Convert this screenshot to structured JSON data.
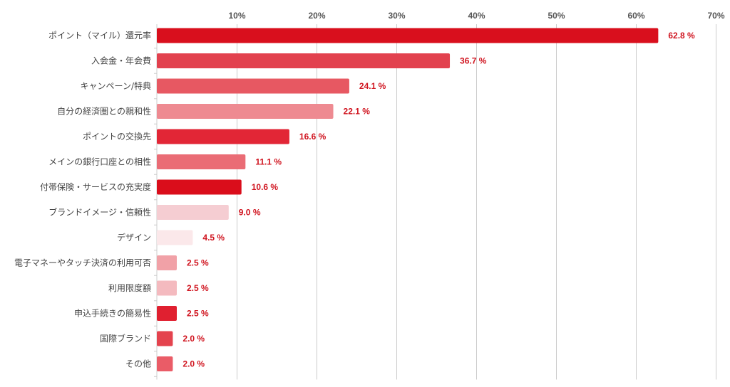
{
  "chart_data": {
    "type": "bar",
    "orientation": "horizontal",
    "title": "",
    "xlabel": "",
    "ylabel": "",
    "xlim": [
      0,
      70
    ],
    "xticks": [
      10,
      20,
      30,
      40,
      50,
      60,
      70
    ],
    "tick_suffix": "%",
    "value_suffix": " %",
    "grid": true,
    "legend": "none",
    "categories": [
      "ポイント（マイル）還元率",
      "入会金・年会費",
      "キャンペーン/特典",
      "自分の経済圏との親和性",
      "ポイントの交換先",
      "メインの銀行口座との相性",
      "付帯保険・サービスの充実度",
      "ブランドイメージ・信頼性",
      "デザイン",
      "電子マネーやタッチ決済の利用可否",
      "利用限度額",
      "申込手続きの簡易性",
      "国際ブランド",
      "その他"
    ],
    "values": [
      62.8,
      36.7,
      24.1,
      22.1,
      16.6,
      11.1,
      10.6,
      9.0,
      4.5,
      2.5,
      2.5,
      2.5,
      2.0,
      2.0
    ],
    "bar_colors": [
      "#d90f1d",
      "#e2414e",
      "#e75862",
      "#ee8a91",
      "#e22636",
      "#ea6c75",
      "#da0d1b",
      "#f5cdd2",
      "#fbe8ea",
      "#f1a1a7",
      "#f4babf",
      "#e02030",
      "#e4434e",
      "#ea5c67"
    ],
    "value_label_color": "#d0141f",
    "grid_color": "#cccccc",
    "tick_label_color": "#555555",
    "category_label_color": "#444444"
  }
}
